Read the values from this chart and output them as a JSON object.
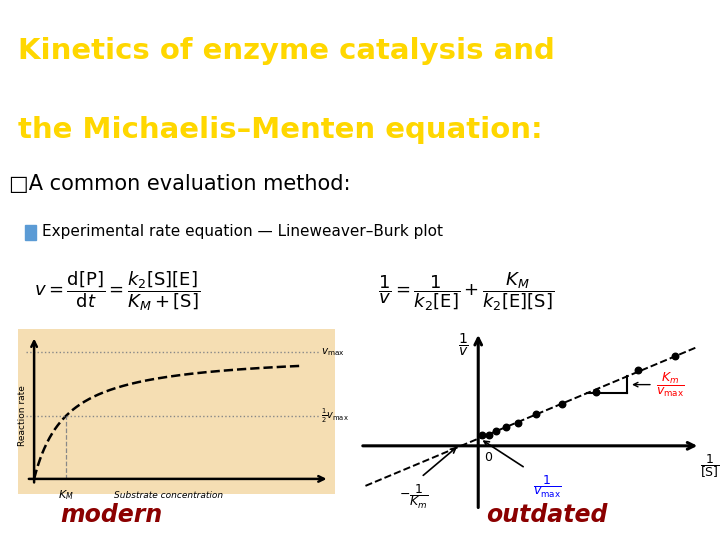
{
  "title_line1": "Kinetics of enzyme catalysis and",
  "title_line2": "the Michaelis–Menten equation:",
  "title_color": "#FFD700",
  "title_bg": "#1a1a1a",
  "slide_bg": "#FFFFFF",
  "subtitle_text": "□A common evaluation method:",
  "bullet_color": "#5B9BD5",
  "bullet_text": "Experimental rate equation — Lineweaver–Burk plot",
  "modern_label": "modern",
  "modern_color": "#8B0000",
  "outdated_label": "outdated",
  "outdated_color": "#8B0000",
  "mm_plot_bg": "#F5DEB3",
  "title_fontsize": 21,
  "subtitle_fontsize": 15,
  "bullet_fontsize": 11
}
